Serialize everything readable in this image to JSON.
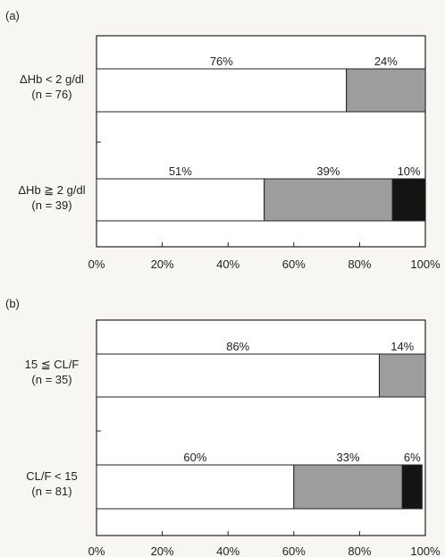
{
  "chart_data": [
    {
      "panel_label": "(a)",
      "type": "bar",
      "orientation": "horizontal",
      "stacked": true,
      "categories": [
        {
          "line1": "ΔHb < 2 g/dl",
          "line2": "(n = 76)"
        },
        {
          "line1": "ΔHb ≧ 2 g/dl",
          "line2": "(n = 39)"
        }
      ],
      "segments": [
        [
          {
            "value": 76,
            "label": "76%",
            "color": "#ffffff"
          },
          {
            "value": 24,
            "label": "24%",
            "color": "#9d9d9d"
          }
        ],
        [
          {
            "value": 51,
            "label": "51%",
            "color": "#ffffff"
          },
          {
            "value": 39,
            "label": "39%",
            "color": "#9d9d9d"
          },
          {
            "value": 10,
            "label": "10%",
            "color": "#141414"
          }
        ]
      ],
      "xlim": [
        0,
        100
      ],
      "xticks": [
        "0%",
        "20%",
        "40%",
        "60%",
        "80%",
        "100%"
      ]
    },
    {
      "panel_label": "(b)",
      "type": "bar",
      "orientation": "horizontal",
      "stacked": true,
      "categories": [
        {
          "line1": "15 ≦ CL/F",
          "line2": "(n = 35)"
        },
        {
          "line1": "CL/F < 15",
          "line2": "(n = 81)"
        }
      ],
      "segments": [
        [
          {
            "value": 86,
            "label": "86%",
            "color": "#ffffff"
          },
          {
            "value": 14,
            "label": "14%",
            "color": "#9d9d9d"
          }
        ],
        [
          {
            "value": 60,
            "label": "60%",
            "color": "#ffffff"
          },
          {
            "value": 33,
            "label": "33%",
            "color": "#9d9d9d"
          },
          {
            "value": 6,
            "label": "6%",
            "color": "#141414"
          }
        ]
      ],
      "xlim": [
        0,
        100
      ],
      "xticks": [
        "0%",
        "20%",
        "40%",
        "60%",
        "80%",
        "100%"
      ]
    }
  ]
}
